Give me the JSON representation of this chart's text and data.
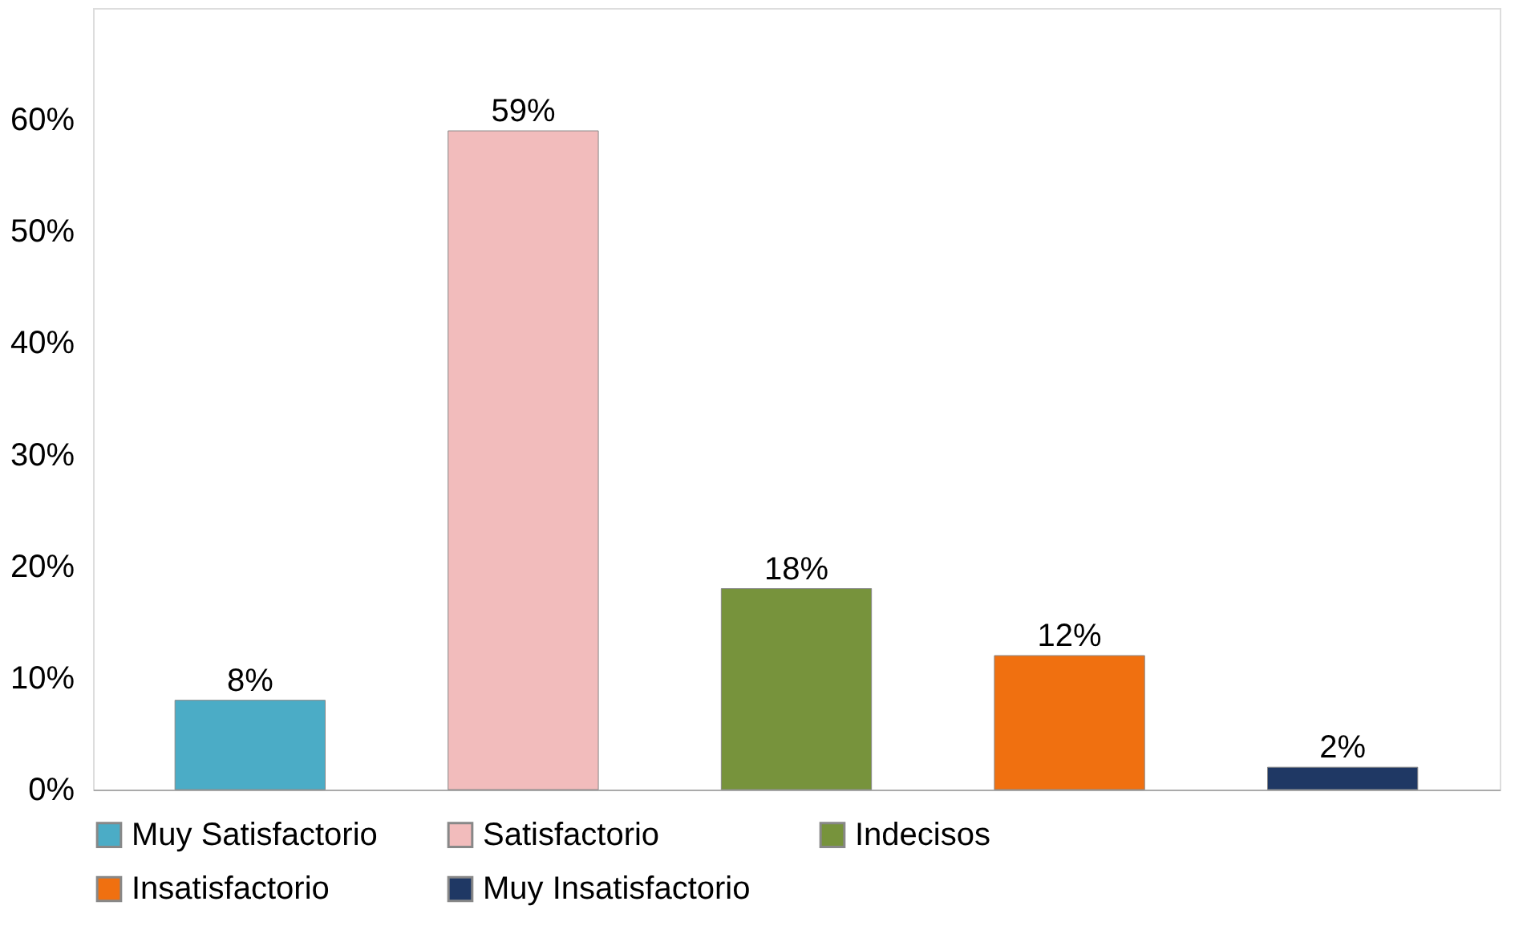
{
  "chart_data": {
    "type": "bar",
    "categories": [
      null,
      null,
      null,
      null,
      null
    ],
    "series": [
      {
        "name": "Muy Satisfactorio",
        "color": "#4bacc6",
        "values": [
          8,
          null,
          null,
          null,
          null
        ]
      },
      {
        "name": "Satisfactorio",
        "color": "#f2bcbc",
        "values": [
          null,
          59,
          null,
          null,
          null
        ]
      },
      {
        "name": "Indecisos",
        "color": "#77933c",
        "values": [
          null,
          null,
          18,
          null,
          null
        ]
      },
      {
        "name": "Insatisfactorio",
        "color": "#f07010",
        "values": [
          null,
          null,
          null,
          12,
          null
        ]
      },
      {
        "name": "Muy Insatisfactorio",
        "color": "#1f3864",
        "values": [
          null,
          null,
          null,
          null,
          2
        ]
      }
    ],
    "value_labels": [
      "8%",
      "59%",
      "18%",
      "12%",
      "2%"
    ],
    "ylim": [
      0,
      70
    ],
    "yticks": [
      {
        "value": 0,
        "label": "0%"
      },
      {
        "value": 10,
        "label": "10%"
      },
      {
        "value": 20,
        "label": "20%"
      },
      {
        "value": 30,
        "label": "30%"
      },
      {
        "value": 40,
        "label": "40%"
      },
      {
        "value": 50,
        "label": "50%"
      },
      {
        "value": 60,
        "label": "60%"
      }
    ],
    "tick_labels": "y",
    "grid": false,
    "legend": "bottom"
  }
}
